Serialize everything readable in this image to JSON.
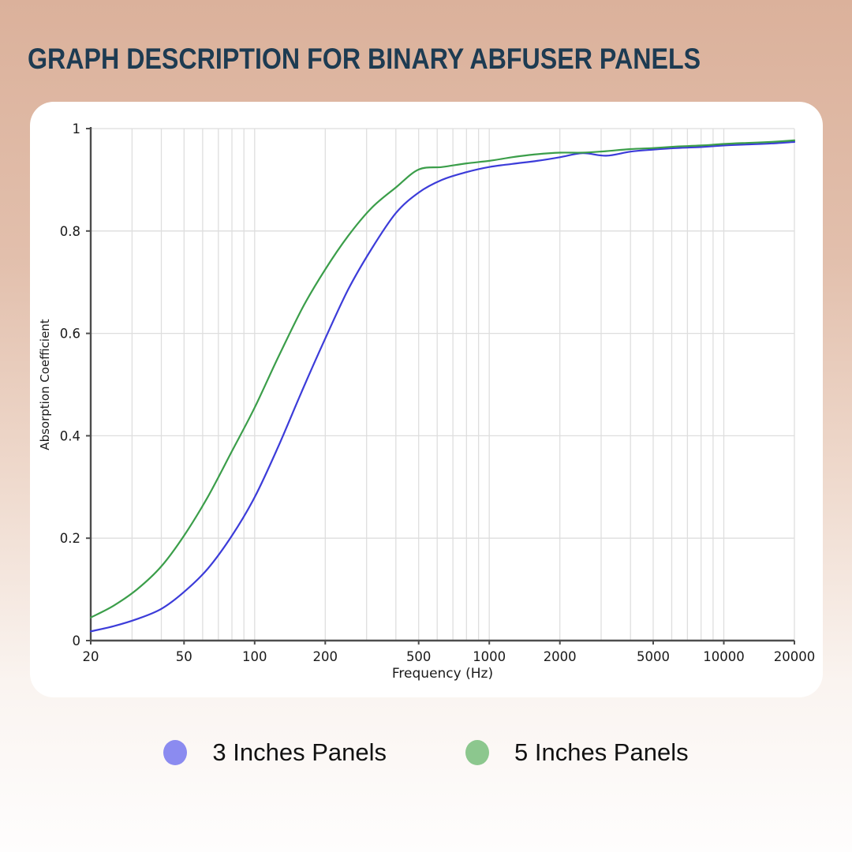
{
  "page": {
    "title": "GRAPH DESCRIPTION FOR BINARY ABFUSER PANELS",
    "title_color": "#1d3b52",
    "background_top": "#dbb19b",
    "background_bottom": "#fefdfd",
    "card_color": "#ffffff"
  },
  "chart_data": {
    "type": "line",
    "title": "",
    "xlabel": "Frequency (Hz)",
    "ylabel": "Absorption Coefficient",
    "x_scale": "log",
    "xlim": [
      20,
      20000
    ],
    "ylim": [
      0,
      1
    ],
    "grid": true,
    "legend_position": "bottom-center",
    "x_ticks": [
      20,
      50,
      100,
      200,
      500,
      1000,
      2000,
      5000,
      10000,
      20000
    ],
    "x_tick_labels": [
      "20",
      "50",
      "100",
      "200",
      "500",
      "1000",
      "2000",
      "5000",
      "10000",
      "20000"
    ],
    "x_gridlines": [
      30,
      40,
      50,
      60,
      70,
      80,
      90,
      100,
      200,
      300,
      400,
      500,
      600,
      700,
      800,
      900,
      1000,
      2000,
      3000,
      4000,
      5000,
      6000,
      7000,
      8000,
      9000,
      10000,
      20000
    ],
    "y_ticks": [
      0,
      0.2,
      0.4,
      0.6,
      0.8,
      1
    ],
    "y_tick_labels": [
      "0",
      "0.2",
      "0.4",
      "0.6",
      "0.8",
      "1"
    ],
    "x": [
      20,
      25,
      31.5,
      40,
      50,
      63,
      80,
      100,
      125,
      160,
      200,
      250,
      315,
      400,
      500,
      630,
      800,
      1000,
      1250,
      1600,
      2000,
      2500,
      3150,
      4000,
      5000,
      6300,
      8000,
      10000,
      12500,
      16000,
      20000
    ],
    "series": [
      {
        "name": "3 Inches Panels",
        "color": "#3c3cd9",
        "legend_color": "#8b8bf0",
        "values": [
          0.018,
          0.028,
          0.042,
          0.062,
          0.095,
          0.14,
          0.205,
          0.28,
          0.375,
          0.49,
          0.59,
          0.685,
          0.765,
          0.835,
          0.875,
          0.9,
          0.915,
          0.925,
          0.931,
          0.937,
          0.944,
          0.952,
          0.947,
          0.955,
          0.959,
          0.962,
          0.964,
          0.967,
          0.969,
          0.971,
          0.974
        ]
      },
      {
        "name": "5 Inches Panels",
        "color": "#3b9e4a",
        "legend_color": "#8cc78e",
        "values": [
          0.045,
          0.068,
          0.1,
          0.145,
          0.205,
          0.28,
          0.37,
          0.455,
          0.55,
          0.65,
          0.725,
          0.79,
          0.845,
          0.885,
          0.92,
          0.925,
          0.932,
          0.937,
          0.944,
          0.95,
          0.953,
          0.953,
          0.956,
          0.96,
          0.962,
          0.965,
          0.967,
          0.97,
          0.972,
          0.974,
          0.977
        ]
      }
    ],
    "style": {
      "grid_color": "#dedede",
      "axis_color": "#4d4d4d",
      "tick_text_color": "#1a1a1a"
    }
  }
}
